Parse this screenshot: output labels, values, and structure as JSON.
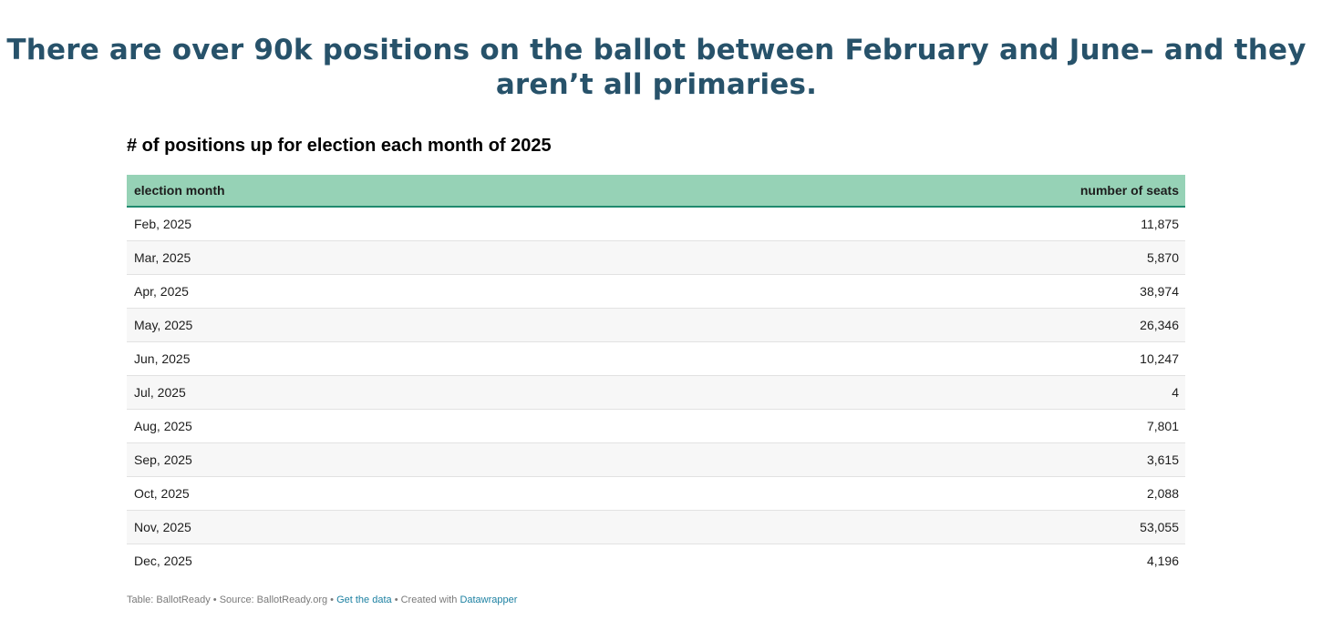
{
  "headline": {
    "line1": "There are over 90k positions on the ballot between February and June– and they",
    "line2": "aren’t all primaries."
  },
  "chart_data": {
    "type": "table",
    "title": "# of positions up for election each month of 2025",
    "columns": [
      "election month",
      "number of seats"
    ],
    "rows": [
      {
        "month": "Feb, 2025",
        "seats": "11,875"
      },
      {
        "month": "Mar, 2025",
        "seats": "5,870"
      },
      {
        "month": "Apr, 2025",
        "seats": "38,974"
      },
      {
        "month": "May, 2025",
        "seats": "26,346"
      },
      {
        "month": "Jun, 2025",
        "seats": "10,247"
      },
      {
        "month": "Jul, 2025",
        "seats": "4"
      },
      {
        "month": "Aug, 2025",
        "seats": "7,801"
      },
      {
        "month": "Sep, 2025",
        "seats": "3,615"
      },
      {
        "month": "Oct, 2025",
        "seats": "2,088"
      },
      {
        "month": "Nov, 2025",
        "seats": "53,055"
      },
      {
        "month": "Dec, 2025",
        "seats": "4,196"
      }
    ]
  },
  "footer": {
    "table_credit": "Table: BallotReady",
    "separator": " • ",
    "source": "Source: BallotReady.org",
    "get_data_link": "Get the data",
    "created_with": "Created with",
    "datawrapper_link": "Datawrapper"
  },
  "colors": {
    "headline": "#27526a",
    "header_background": "#96d2b6",
    "header_border": "#1f8a6e",
    "link": "#1d81a2"
  }
}
